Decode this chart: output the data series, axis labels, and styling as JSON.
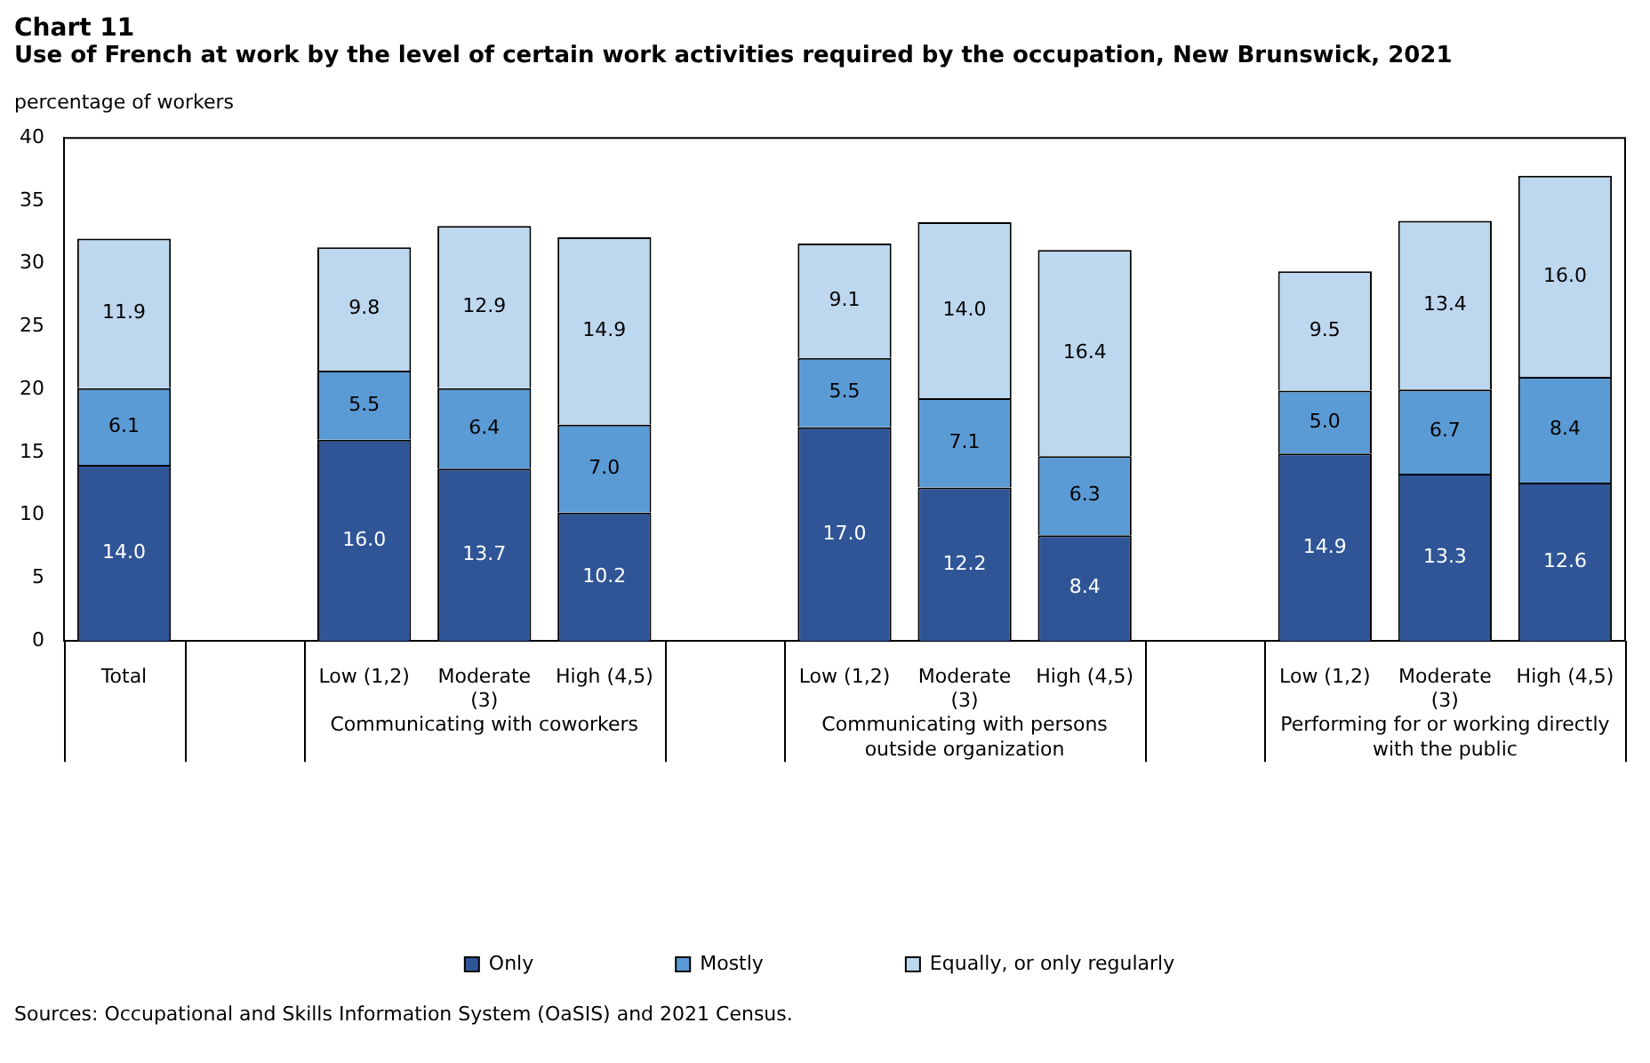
{
  "chart_data": {
    "type": "bar",
    "title": "Chart 11",
    "subtitle": "Use of French at work by the level of certain work activities required by the occupation, New Brunswick, 2021",
    "ylabel": "percentage of workers",
    "categories": [
      "Total",
      null,
      "Low (1,2)",
      "Moderate (3)",
      "High (4,5)",
      null,
      "Low (1,2)",
      "Moderate (3)",
      "High (4,5)",
      null,
      "Low (1,2)",
      "Moderate (3)",
      "High (4,5)"
    ],
    "stacked": true,
    "ylim": [
      0,
      40
    ],
    "yticks": [
      0,
      5,
      10,
      15,
      20,
      25,
      30,
      35,
      40
    ],
    "grid": false,
    "legend": "bottom",
    "series": [
      {
        "name": "Only",
        "color": "#2f5597",
        "values": [
          14.0,
          null,
          16.0,
          13.7,
          10.2,
          null,
          17.0,
          12.2,
          8.4,
          null,
          14.9,
          13.3,
          12.6
        ],
        "value_labels": [
          "14.0",
          null,
          "16.0",
          "13.7",
          "10.2",
          null,
          "17.0",
          "12.2",
          "8.4",
          null,
          "14.9",
          "13.3",
          "12.6"
        ]
      },
      {
        "name": "Mostly",
        "color": "#5b9bd5",
        "values": [
          6.1,
          null,
          5.5,
          6.4,
          7.0,
          null,
          5.5,
          7.1,
          6.3,
          null,
          5.0,
          6.7,
          8.4
        ],
        "value_labels": [
          "6.1",
          null,
          "5.5",
          "6.4",
          "7.0",
          null,
          "5.5",
          "7.1",
          "6.3",
          null,
          "5.0",
          "6.7",
          "8.4"
        ]
      },
      {
        "name": "Equally, or only regularly",
        "color": "#bdd7ee",
        "values": [
          11.9,
          null,
          9.8,
          12.9,
          14.9,
          null,
          9.1,
          14.0,
          16.4,
          null,
          9.5,
          13.4,
          16.0
        ],
        "value_labels": [
          "11.9",
          null,
          "9.8",
          "12.9",
          "14.9",
          null,
          "9.1",
          "14.0",
          "16.4",
          null,
          "9.5",
          "13.4",
          "16.0"
        ]
      }
    ],
    "annotations": [
      "Communicating with coworkers",
      "Communicating with persons outside organization",
      "Performing for or working directly with the public",
      "Sources: Occupational and Skills Information System (OaSIS) and 2021 Census."
    ]
  }
}
